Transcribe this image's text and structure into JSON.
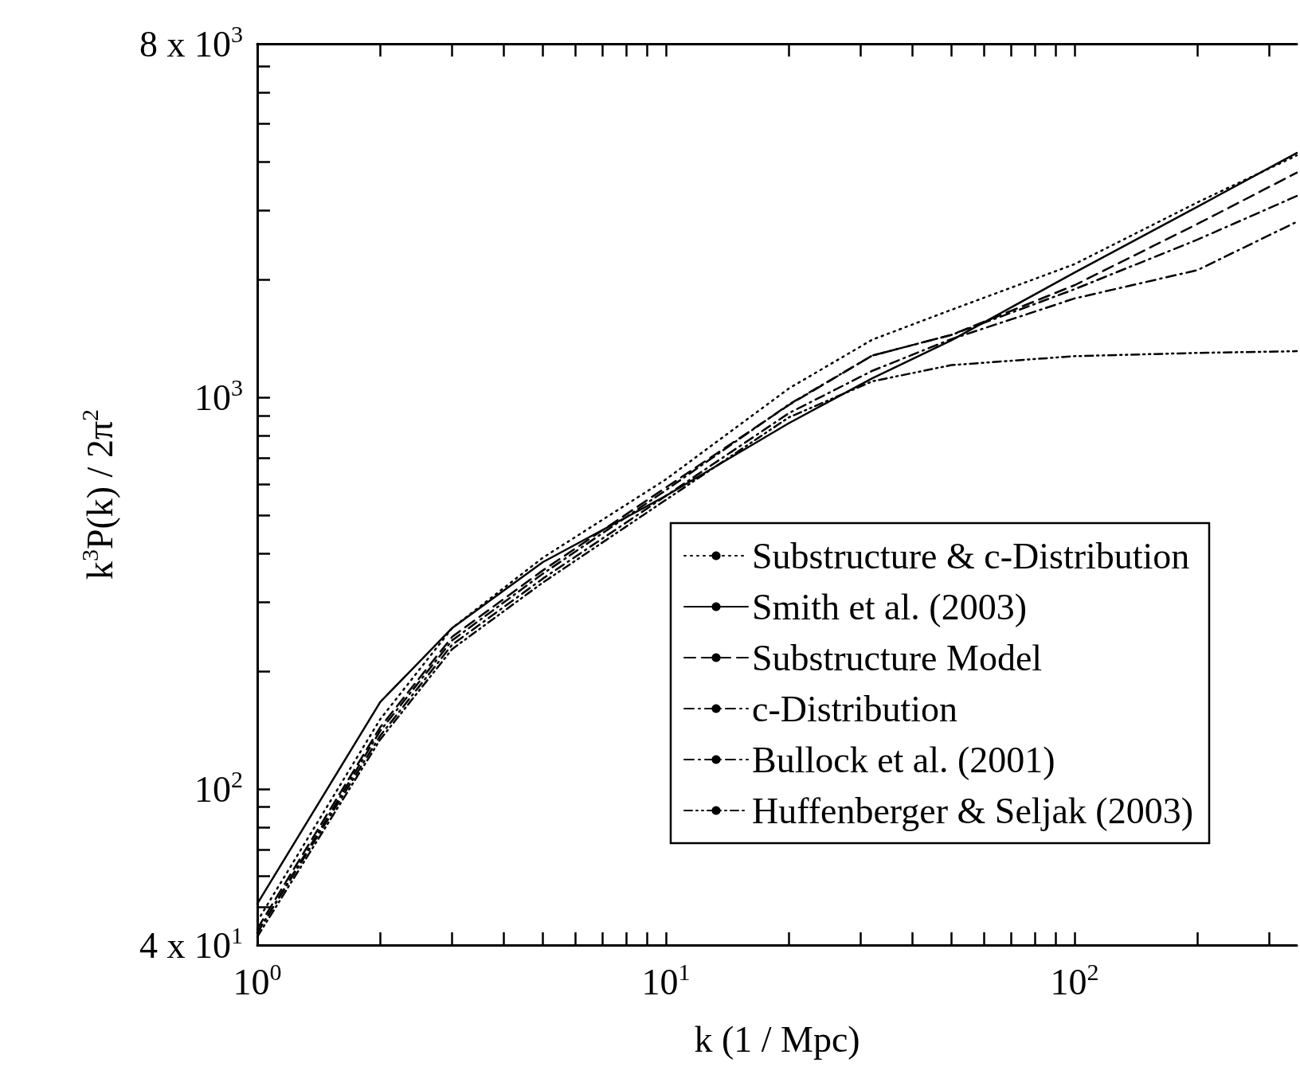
{
  "chart_data": {
    "type": "line",
    "xlabel": "k (1 / Mpc)",
    "ylabel": "k$^{3}$P(k) / 2π$^{2}$",
    "log": "xy",
    "xlim": [
      1,
      350
    ],
    "ylim": [
      40,
      8000
    ],
    "xticks": [
      {
        "value": 1,
        "label": "10$^{0}$"
      },
      {
        "value": 2,
        "label": null
      },
      {
        "value": 3,
        "label": null
      },
      {
        "value": 4,
        "label": null
      },
      {
        "value": 5,
        "label": null
      },
      {
        "value": 6,
        "label": null
      },
      {
        "value": 7,
        "label": null
      },
      {
        "value": 8,
        "label": null
      },
      {
        "value": 9,
        "label": null
      },
      {
        "value": 10,
        "label": "10$^{1}$"
      },
      {
        "value": 20,
        "label": null
      },
      {
        "value": 30,
        "label": null
      },
      {
        "value": 40,
        "label": null
      },
      {
        "value": 50,
        "label": null
      },
      {
        "value": 60,
        "label": null
      },
      {
        "value": 70,
        "label": null
      },
      {
        "value": 80,
        "label": null
      },
      {
        "value": 90,
        "label": null
      },
      {
        "value": 100,
        "label": "10$^{2}$"
      },
      {
        "value": 200,
        "label": null
      },
      {
        "value": 300,
        "label": null
      }
    ],
    "yticks": [
      {
        "value": 40,
        "label": "4 x 10$^{1}$"
      },
      {
        "value": 50,
        "label": null
      },
      {
        "value": 60,
        "label": null
      },
      {
        "value": 70,
        "label": null
      },
      {
        "value": 80,
        "label": null
      },
      {
        "value": 90,
        "label": null
      },
      {
        "value": 100,
        "label": "10$^{2}$"
      },
      {
        "value": 200,
        "label": null
      },
      {
        "value": 300,
        "label": null
      },
      {
        "value": 400,
        "label": null
      },
      {
        "value": 500,
        "label": null
      },
      {
        "value": 600,
        "label": null
      },
      {
        "value": 700,
        "label": null
      },
      {
        "value": 800,
        "label": null
      },
      {
        "value": 900,
        "label": null
      },
      {
        "value": 1000,
        "label": "10$^{3}$"
      },
      {
        "value": 2000,
        "label": null
      },
      {
        "value": 3000,
        "label": null
      },
      {
        "value": 4000,
        "label": null
      },
      {
        "value": 5000,
        "label": null
      },
      {
        "value": 6000,
        "label": null
      },
      {
        "value": 7000,
        "label": null
      },
      {
        "value": 8000,
        "label": "8 x 10$^{3}$"
      }
    ],
    "x": [
      1,
      2,
      3,
      5,
      10,
      20,
      32,
      50,
      100,
      200,
      350
    ],
    "grid": false,
    "legend": "bottom right",
    "marker": "none",
    "series": [
      {
        "name": "Substructure & c-Distribution",
        "color": "#000000",
        "line_style": "dotted",
        "values": [
          46,
          151,
          258,
          390,
          618,
          1055,
          1405,
          1675,
          2190,
          3150,
          4150
        ]
      },
      {
        "name": "Smith et al. (2003)",
        "color": "#000000",
        "line_style": "solid",
        "values": [
          51,
          167,
          258,
          380,
          561,
          860,
          1120,
          1400,
          2085,
          3070,
          4210
        ]
      },
      {
        "name": "Substructure Model",
        "color": "#000000",
        "line_style": "dashed",
        "values": [
          44,
          144,
          245,
          362,
          589,
          957,
          1280,
          1445,
          1935,
          2775,
          3750
        ]
      },
      {
        "name": "c-Distribution",
        "color": "#000000",
        "line_style": "dashdot",
        "values": [
          43,
          141,
          240,
          355,
          580,
          960,
          1280,
          1445,
          1890,
          2530,
          3270
        ]
      },
      {
        "name": "Bullock et al. (2001)",
        "color": "#000000",
        "line_style": "dashdot",
        "values": [
          43,
          137,
          234,
          345,
          561,
          912,
          1170,
          1410,
          1790,
          2115,
          2810
        ]
      },
      {
        "name": "Huffenberger & Seljak (2003)",
        "color": "#000000",
        "line_style": "dashdotdot",
        "values": [
          42,
          134,
          228,
          337,
          548,
          890,
          1100,
          1210,
          1275,
          1300,
          1313
        ]
      }
    ]
  }
}
